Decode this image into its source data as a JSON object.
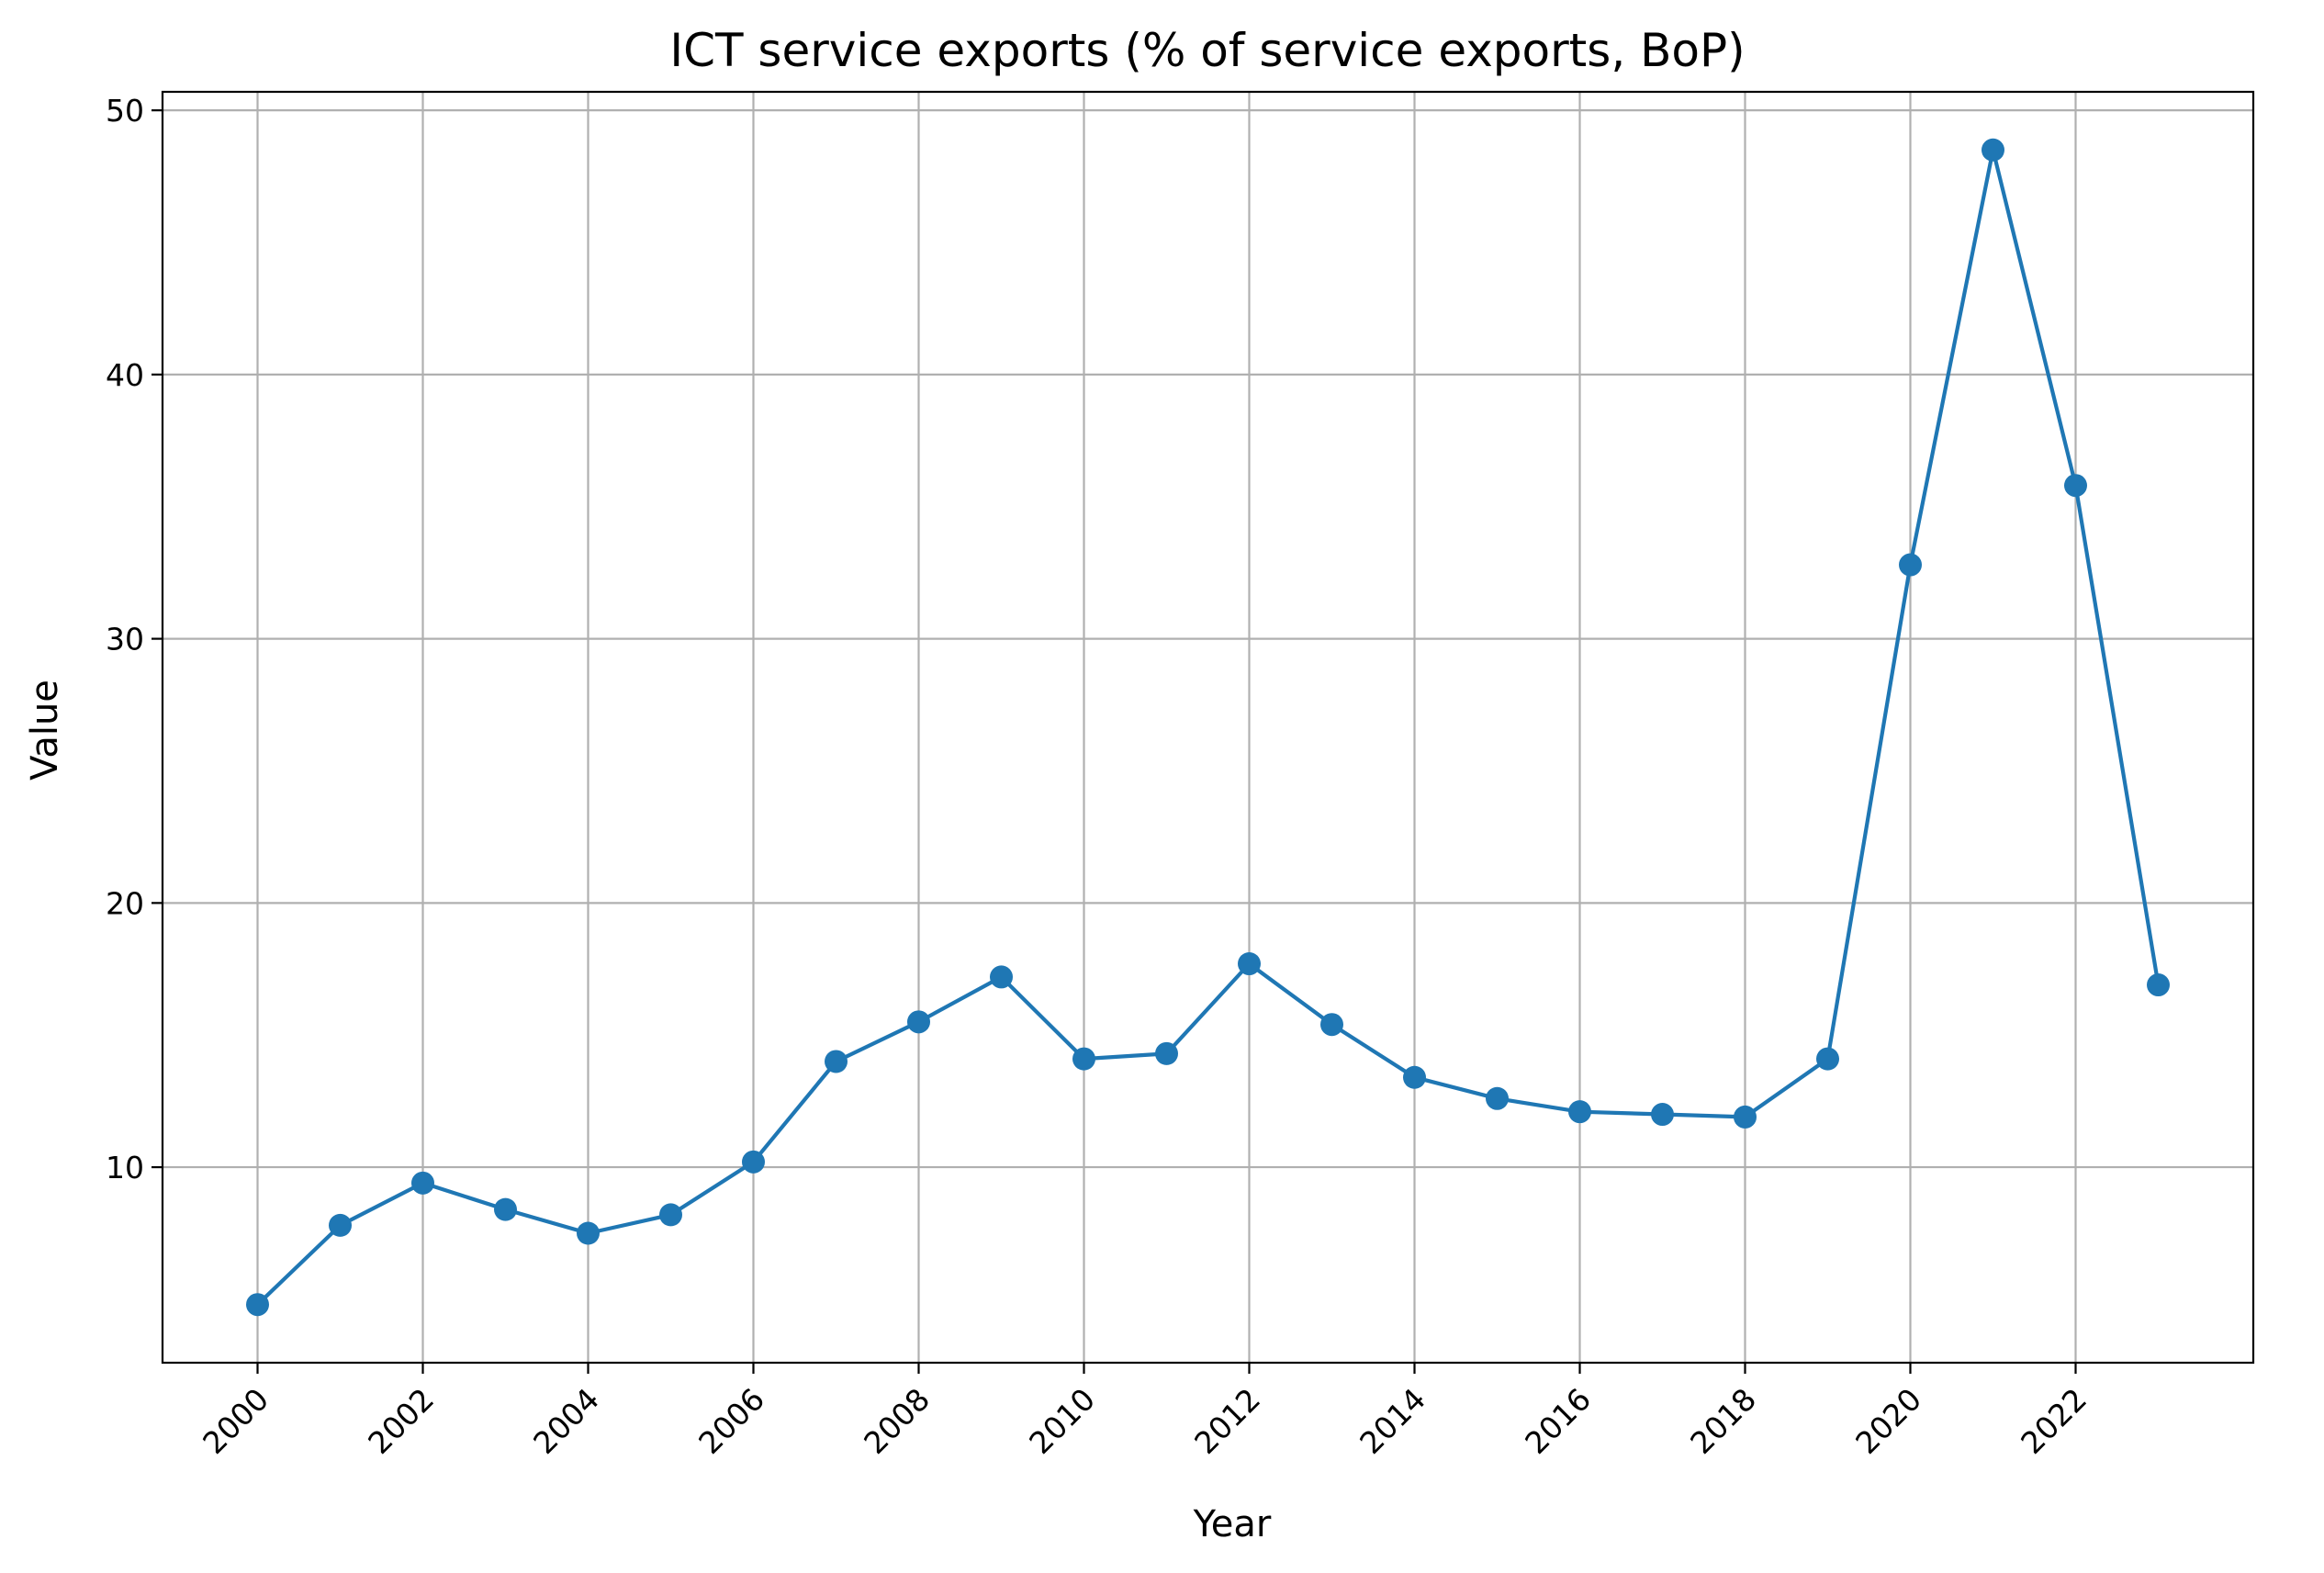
{
  "chart_data": {
    "type": "line",
    "title": "ICT service exports (% of service exports, BoP)",
    "xlabel": "Year",
    "ylabel": "Value",
    "x": [
      2000,
      2001,
      2002,
      2003,
      2004,
      2005,
      2006,
      2007,
      2008,
      2009,
      2010,
      2011,
      2012,
      2013,
      2014,
      2015,
      2016,
      2017,
      2018,
      2019,
      2020,
      2021,
      2022,
      2023
    ],
    "series": [
      {
        "values": [
          4.8,
          7.8,
          9.4,
          8.4,
          7.5,
          8.2,
          10.2,
          14.0,
          15.5,
          17.2,
          14.1,
          14.3,
          17.7,
          15.4,
          13.4,
          12.6,
          12.1,
          12.0,
          11.9,
          14.1,
          32.8,
          48.5,
          35.8,
          16.9
        ],
        "color": "#1f77b4"
      }
    ],
    "xticks": [
      "2000",
      "2002",
      "2004",
      "2006",
      "2008",
      "2010",
      "2012",
      "2014",
      "2016",
      "2018",
      "2020",
      "2022"
    ],
    "yticks": [
      "10",
      "20",
      "30",
      "40",
      "50"
    ],
    "xlim": [
      1998.85,
      2024.15
    ],
    "ylim": [
      2.6,
      50.7
    ],
    "grid": true,
    "tick_label_rotation_deg": 45
  }
}
